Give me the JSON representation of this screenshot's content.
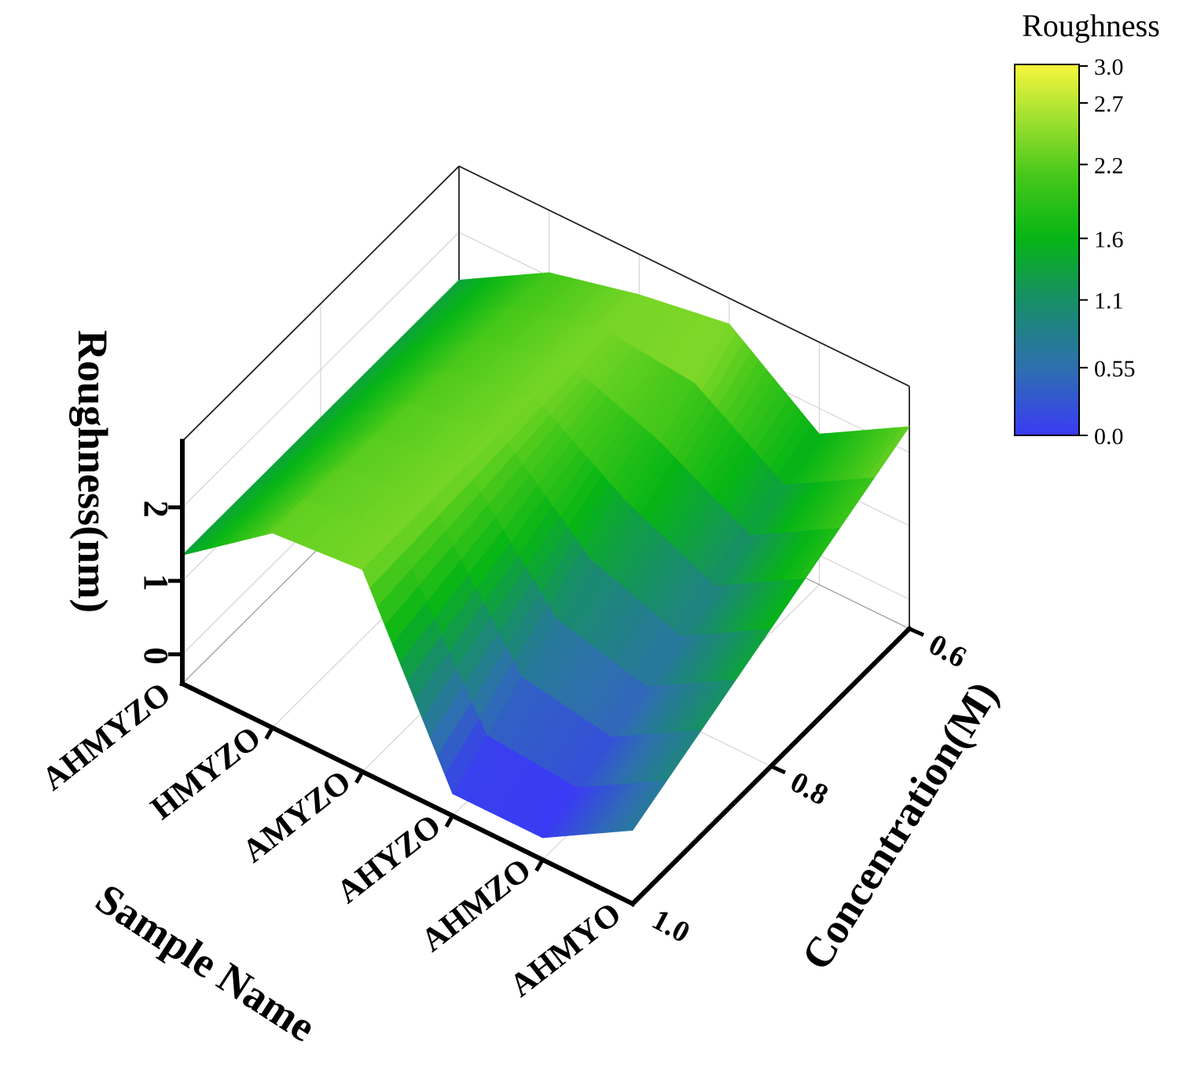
{
  "chart_data": {
    "type": "surface3d",
    "zlabel": "Roughness(nm)",
    "xlabel": "Sample Name",
    "ylabel": "Concentration(M)",
    "categories": [
      "AHMYZO",
      "HMYZO",
      "AMYZO",
      "AHYZO",
      "AHMZO",
      "AHMYO"
    ],
    "y_ticks": [
      "0.6",
      "0.8",
      "1.0"
    ],
    "z_ticks": [
      "0",
      "1",
      "2"
    ],
    "zlim": [
      -0.4,
      3.0
    ],
    "series": [
      {
        "concentration": 1.0,
        "values": [
          1.35,
          2.25,
          2.35,
          -0.1,
          -0.1,
          0.6
        ]
      },
      {
        "concentration": 0.6,
        "values": [
          1.35,
          2.05,
          2.35,
          2.55,
          1.65,
          2.35
        ]
      }
    ],
    "colorbar": {
      "title": "Roughness",
      "ticks": [
        "3.0",
        "2.7",
        "2.2",
        "1.6",
        "1.1",
        "0.55",
        "0.0"
      ],
      "tick_values": [
        3.0,
        2.7,
        2.2,
        1.6,
        1.1,
        0.55,
        0.0
      ],
      "colors": [
        "#3a3af5",
        "#2e6fb0",
        "#178f65",
        "#06b515",
        "#46c81a",
        "#9ee030",
        "#f7f73c"
      ],
      "color_stops": [
        0,
        0.18,
        0.37,
        0.53,
        0.7,
        0.85,
        1.0
      ]
    },
    "grid": true
  }
}
